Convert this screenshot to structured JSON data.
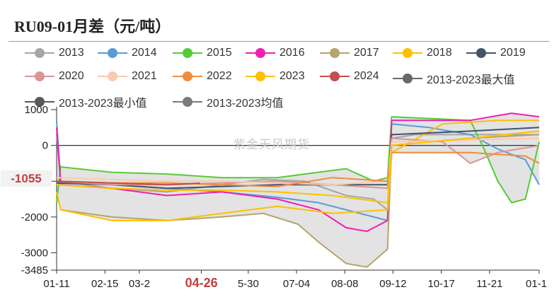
{
  "chart_data": {
    "type": "line",
    "title": "RU09-01月差（元/吨）",
    "watermark": "紫金天风期货",
    "current_value_label": "-1055",
    "y_ticks": [
      1000,
      0,
      -1000,
      -2000,
      -3000,
      -3485
    ],
    "y_tick_labels": [
      "1000",
      "0",
      "",
      "-2000",
      "-3000",
      "-3485"
    ],
    "ylim": [
      -3485,
      1000
    ],
    "x_ticks": [
      "01-11",
      "02-15",
      "03-2",
      "04-26",
      "5-30",
      "07-04",
      "08-08",
      "09-12",
      "10-17",
      "11-21",
      "01-1"
    ],
    "highlight_tick": "04-26",
    "x_positions": [
      0,
      35,
      60,
      105,
      139,
      174,
      209,
      244,
      279,
      314,
      350
    ],
    "band_color": "#e3e3e3",
    "series": [
      {
        "name": "2013",
        "color": "#a6a6a6",
        "points": [
          [
            0,
            300
          ],
          [
            3,
            -1000
          ],
          [
            40,
            -1200
          ],
          [
            80,
            -1300
          ],
          [
            120,
            -1100
          ],
          [
            150,
            -950
          ],
          [
            180,
            -1000
          ],
          [
            210,
            -1400
          ],
          [
            230,
            -1500
          ],
          [
            240,
            -1800
          ],
          [
            243,
            200
          ],
          [
            260,
            300
          ],
          [
            300,
            300
          ],
          [
            350,
            300
          ]
        ]
      },
      {
        "name": "2014",
        "color": "#5b9bd5",
        "points": [
          [
            0,
            700
          ],
          [
            3,
            -1000
          ],
          [
            40,
            -1100
          ],
          [
            80,
            -1200
          ],
          [
            120,
            -1300
          ],
          [
            160,
            -1450
          ],
          [
            190,
            -1600
          ],
          [
            210,
            -1800
          ],
          [
            230,
            -2000
          ],
          [
            240,
            -2100
          ],
          [
            243,
            600
          ],
          [
            270,
            500
          ],
          [
            300,
            300
          ],
          [
            320,
            -100
          ],
          [
            340,
            -400
          ],
          [
            350,
            -1100
          ]
        ]
      },
      {
        "name": "2015",
        "color": "#55cc33",
        "points": [
          [
            0,
            -1600
          ],
          [
            3,
            -600
          ],
          [
            40,
            -750
          ],
          [
            80,
            -800
          ],
          [
            120,
            -900
          ],
          [
            160,
            -900
          ],
          [
            180,
            -800
          ],
          [
            210,
            -650
          ],
          [
            230,
            -1000
          ],
          [
            240,
            -900
          ],
          [
            243,
            800
          ],
          [
            300,
            700
          ],
          [
            310,
            -100
          ],
          [
            320,
            -1000
          ],
          [
            330,
            -1600
          ],
          [
            340,
            -1500
          ],
          [
            350,
            100
          ]
        ]
      },
      {
        "name": "2016",
        "color": "#f020b0",
        "points": [
          [
            0,
            500
          ],
          [
            3,
            -1100
          ],
          [
            40,
            -1200
          ],
          [
            80,
            -1400
          ],
          [
            120,
            -1300
          ],
          [
            160,
            -1500
          ],
          [
            190,
            -1800
          ],
          [
            210,
            -2300
          ],
          [
            225,
            -2400
          ],
          [
            240,
            -2100
          ],
          [
            243,
            700
          ],
          [
            300,
            700
          ],
          [
            330,
            900
          ],
          [
            350,
            800
          ]
        ]
      },
      {
        "name": "2017",
        "color": "#b5a56b",
        "points": [
          [
            0,
            -1300
          ],
          [
            3,
            -1800
          ],
          [
            40,
            -2000
          ],
          [
            80,
            -2100
          ],
          [
            120,
            -2000
          ],
          [
            150,
            -1900
          ],
          [
            175,
            -2200
          ],
          [
            190,
            -2700
          ],
          [
            210,
            -3300
          ],
          [
            225,
            -3400
          ],
          [
            240,
            -2900
          ],
          [
            243,
            0
          ],
          [
            270,
            100
          ],
          [
            300,
            200
          ],
          [
            350,
            300
          ]
        ]
      },
      {
        "name": "2018",
        "color": "#ffc000",
        "points": [
          [
            0,
            -1300
          ],
          [
            3,
            -1800
          ],
          [
            40,
            -2100
          ],
          [
            80,
            -2100
          ],
          [
            120,
            -1900
          ],
          [
            160,
            -1700
          ],
          [
            200,
            -1900
          ],
          [
            240,
            -1800
          ],
          [
            243,
            -200
          ],
          [
            280,
            600
          ],
          [
            320,
            700
          ],
          [
            350,
            700
          ]
        ]
      },
      {
        "name": "2019",
        "color": "#44546a",
        "points": [
          [
            0,
            -1050
          ],
          [
            40,
            -1100
          ],
          [
            80,
            -1200
          ],
          [
            120,
            -1150
          ],
          [
            160,
            -1100
          ],
          [
            200,
            -1100
          ],
          [
            240,
            -1100
          ],
          [
            243,
            300
          ],
          [
            300,
            400
          ],
          [
            350,
            500
          ]
        ]
      },
      {
        "name": "2020",
        "color": "#d99594",
        "points": [
          [
            0,
            -1000
          ],
          [
            40,
            -1100
          ],
          [
            80,
            -1100
          ],
          [
            120,
            -1050
          ],
          [
            160,
            -1000
          ],
          [
            200,
            -1100
          ],
          [
            240,
            -1200
          ],
          [
            243,
            200
          ],
          [
            280,
            100
          ],
          [
            300,
            -500
          ],
          [
            320,
            -200
          ],
          [
            350,
            0
          ]
        ]
      },
      {
        "name": "2021",
        "color": "#f8cbad",
        "points": [
          [
            0,
            -900
          ],
          [
            40,
            -950
          ],
          [
            80,
            -1000
          ],
          [
            120,
            -1000
          ],
          [
            160,
            -1050
          ],
          [
            200,
            -1100
          ],
          [
            240,
            -1000
          ],
          [
            243,
            100
          ],
          [
            300,
            150
          ],
          [
            350,
            200
          ]
        ]
      },
      {
        "name": "2022",
        "color": "#f08c3c",
        "points": [
          [
            0,
            -1000
          ],
          [
            40,
            -1050
          ],
          [
            80,
            -1050
          ],
          [
            120,
            -1100
          ],
          [
            160,
            -1150
          ],
          [
            200,
            -900
          ],
          [
            240,
            -1000
          ],
          [
            243,
            -200
          ],
          [
            300,
            -200
          ],
          [
            340,
            -300
          ],
          [
            350,
            -500
          ]
        ]
      },
      {
        "name": "2023",
        "color": "#ffc000",
        "points": [
          [
            0,
            -1100
          ],
          [
            40,
            -1200
          ],
          [
            80,
            -1250
          ],
          [
            120,
            -1250
          ],
          [
            160,
            -1300
          ],
          [
            200,
            -1400
          ],
          [
            240,
            -1600
          ],
          [
            243,
            0
          ],
          [
            300,
            200
          ],
          [
            350,
            400
          ]
        ]
      },
      {
        "name": "2024",
        "color": "#c0504d",
        "points": [
          [
            0,
            -1000
          ],
          [
            40,
            -1050
          ],
          [
            80,
            -1100
          ],
          [
            104,
            -1055
          ]
        ]
      },
      {
        "name": "2013-2023最大值",
        "color": "#696969",
        "points": []
      },
      {
        "name": "2013-2023最小值",
        "color": "#595959",
        "points": []
      },
      {
        "name": "2013-2023均值",
        "color": "#7a7a7a",
        "points": []
      }
    ]
  }
}
